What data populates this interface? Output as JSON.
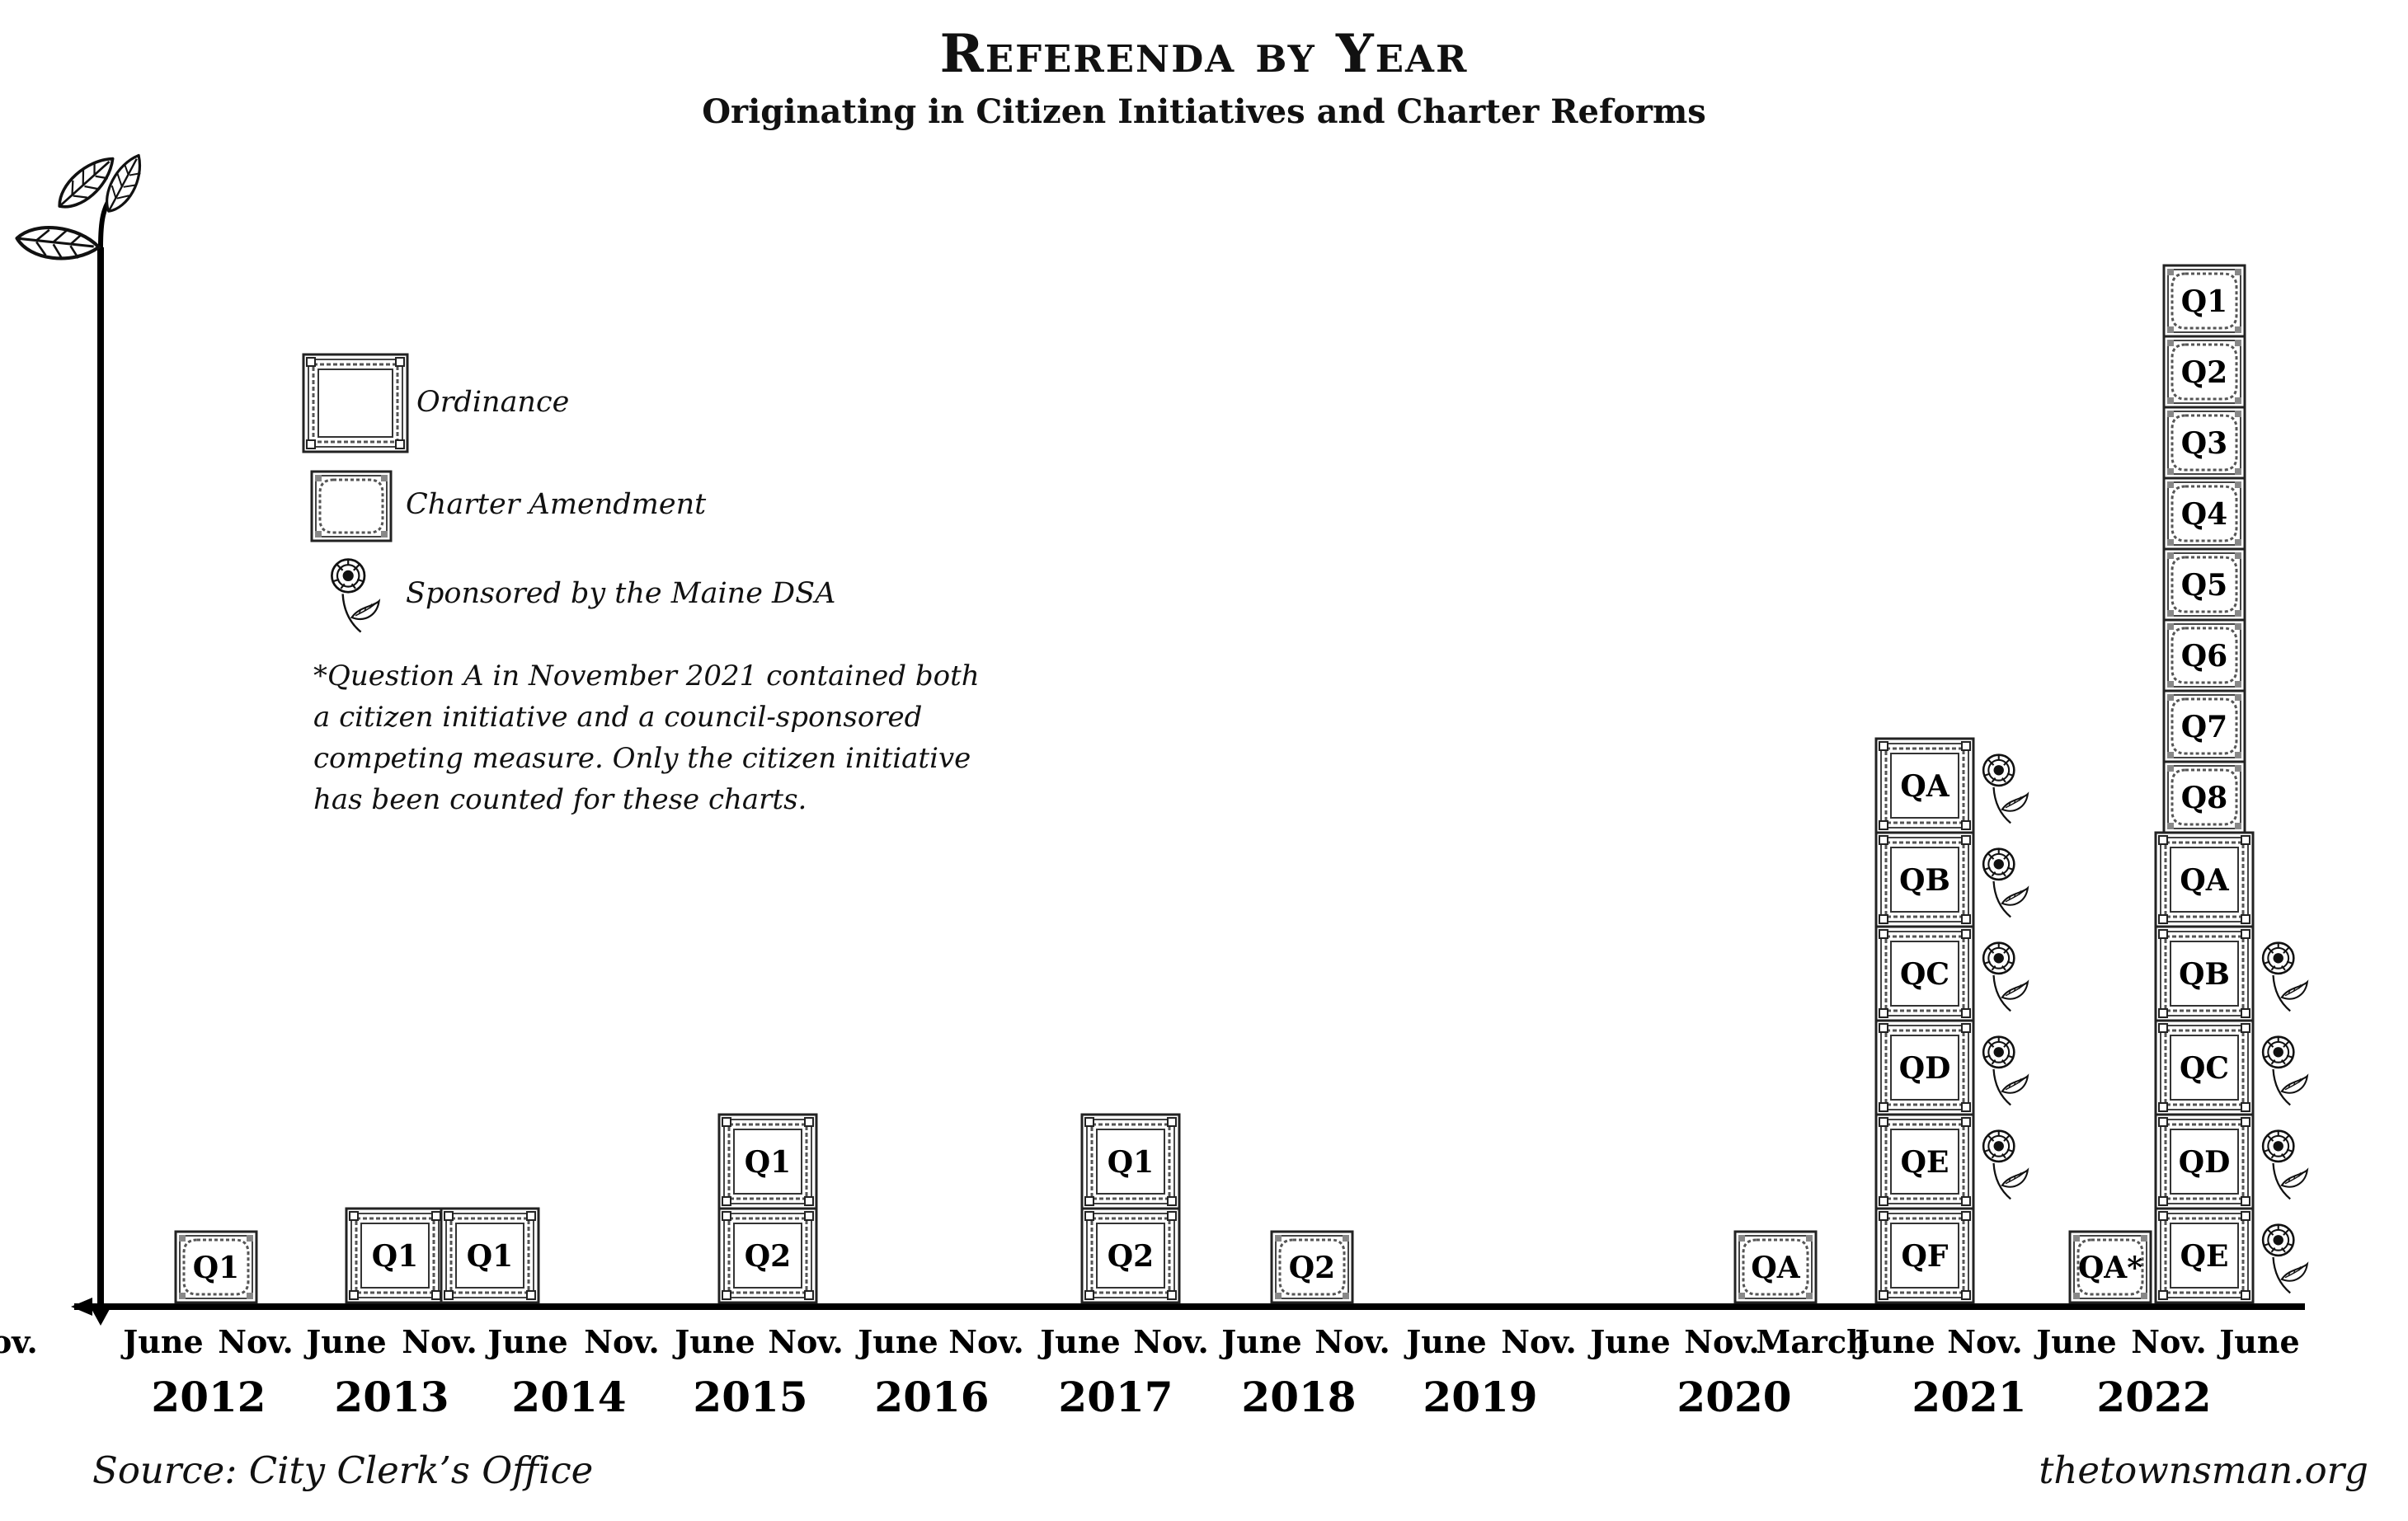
{
  "chart_data": {
    "type": "stacked-pictogram",
    "title": "Referenda by Year",
    "subtitle": "Originating in Citizen Initiatives and Charter Reforms",
    "legend": [
      {
        "key": "ordinance",
        "label": "Ordinance"
      },
      {
        "key": "charter",
        "label": "Charter Amendment"
      },
      {
        "key": "dsa",
        "label": "Sponsored by the Maine DSA"
      }
    ],
    "note": "*Question A in November 2021 contained both a citizen initiative and a council-sponsored competing measure. Only the citizen initiative has been counted for these charts.",
    "year_labels": [
      "2012",
      "2013",
      "2014",
      "2015",
      "2016",
      "2017",
      "2018",
      "2019",
      "2020",
      "2021",
      "2022"
    ],
    "month_labels": [
      "June",
      "Nov.",
      "June",
      "Nov.",
      "June",
      "Nov.",
      "June",
      "Nov.",
      "June",
      "Nov.",
      "June",
      "Nov.",
      "June",
      "Nov.",
      "June",
      "Nov.",
      "June",
      "Nov.",
      "March",
      "June",
      "Nov.",
      "June",
      "Nov.",
      "June",
      "Nov."
    ],
    "columns": [
      {
        "year": "2012",
        "month": "Nov.",
        "items": [
          {
            "label": "Q1",
            "type": "charter",
            "dsa": false
          }
        ]
      },
      {
        "year": "2013",
        "month": "Nov.",
        "items": [
          {
            "label": "Q1",
            "type": "ordinance",
            "dsa": false
          }
        ]
      },
      {
        "year": "2014",
        "month": "June",
        "items": [
          {
            "label": "Q1",
            "type": "ordinance",
            "dsa": false
          }
        ]
      },
      {
        "year": "2015",
        "month": "Nov.",
        "items": [
          {
            "label": "Q2",
            "type": "ordinance",
            "dsa": false
          },
          {
            "label": "Q1",
            "type": "ordinance",
            "dsa": false
          }
        ]
      },
      {
        "year": "2017",
        "month": "Nov.",
        "items": [
          {
            "label": "Q2",
            "type": "ordinance",
            "dsa": false
          },
          {
            "label": "Q1",
            "type": "ordinance",
            "dsa": false
          }
        ]
      },
      {
        "year": "2018",
        "month": "Nov.",
        "items": [
          {
            "label": "Q2",
            "type": "charter",
            "dsa": false
          }
        ]
      },
      {
        "year": "2020",
        "month": "March",
        "items": [
          {
            "label": "QA",
            "type": "charter",
            "dsa": false
          }
        ]
      },
      {
        "year": "2020",
        "month": "Nov.",
        "items": [
          {
            "label": "QF",
            "type": "ordinance",
            "dsa": false
          },
          {
            "label": "QE",
            "type": "ordinance",
            "dsa": true
          },
          {
            "label": "QD",
            "type": "ordinance",
            "dsa": true
          },
          {
            "label": "QC",
            "type": "ordinance",
            "dsa": true
          },
          {
            "label": "QB",
            "type": "ordinance",
            "dsa": true
          },
          {
            "label": "QA",
            "type": "ordinance",
            "dsa": true
          }
        ]
      },
      {
        "year": "2021",
        "month": "Nov.",
        "items": [
          {
            "label": "QA*",
            "type": "charter",
            "dsa": false
          }
        ]
      },
      {
        "year": "2022",
        "month": "June",
        "items": [
          {
            "label": "QE",
            "type": "ordinance",
            "dsa": true
          },
          {
            "label": "QD",
            "type": "ordinance",
            "dsa": true
          },
          {
            "label": "QC",
            "type": "ordinance",
            "dsa": true
          },
          {
            "label": "QB",
            "type": "ordinance",
            "dsa": true
          },
          {
            "label": "QA",
            "type": "ordinance",
            "dsa": false
          },
          {
            "label": "Q8",
            "type": "charter",
            "dsa": false
          },
          {
            "label": "Q7",
            "type": "charter",
            "dsa": false
          },
          {
            "label": "Q6",
            "type": "charter",
            "dsa": false
          },
          {
            "label": "Q5",
            "type": "charter",
            "dsa": false
          },
          {
            "label": "Q4",
            "type": "charter",
            "dsa": false
          },
          {
            "label": "Q3",
            "type": "charter",
            "dsa": false
          },
          {
            "label": "Q2",
            "type": "charter",
            "dsa": false
          },
          {
            "label": "Q1",
            "type": "charter",
            "dsa": false
          }
        ]
      }
    ]
  },
  "footer": {
    "source": "Source: City Clerk’s Office",
    "site": "thetownsman.org"
  }
}
